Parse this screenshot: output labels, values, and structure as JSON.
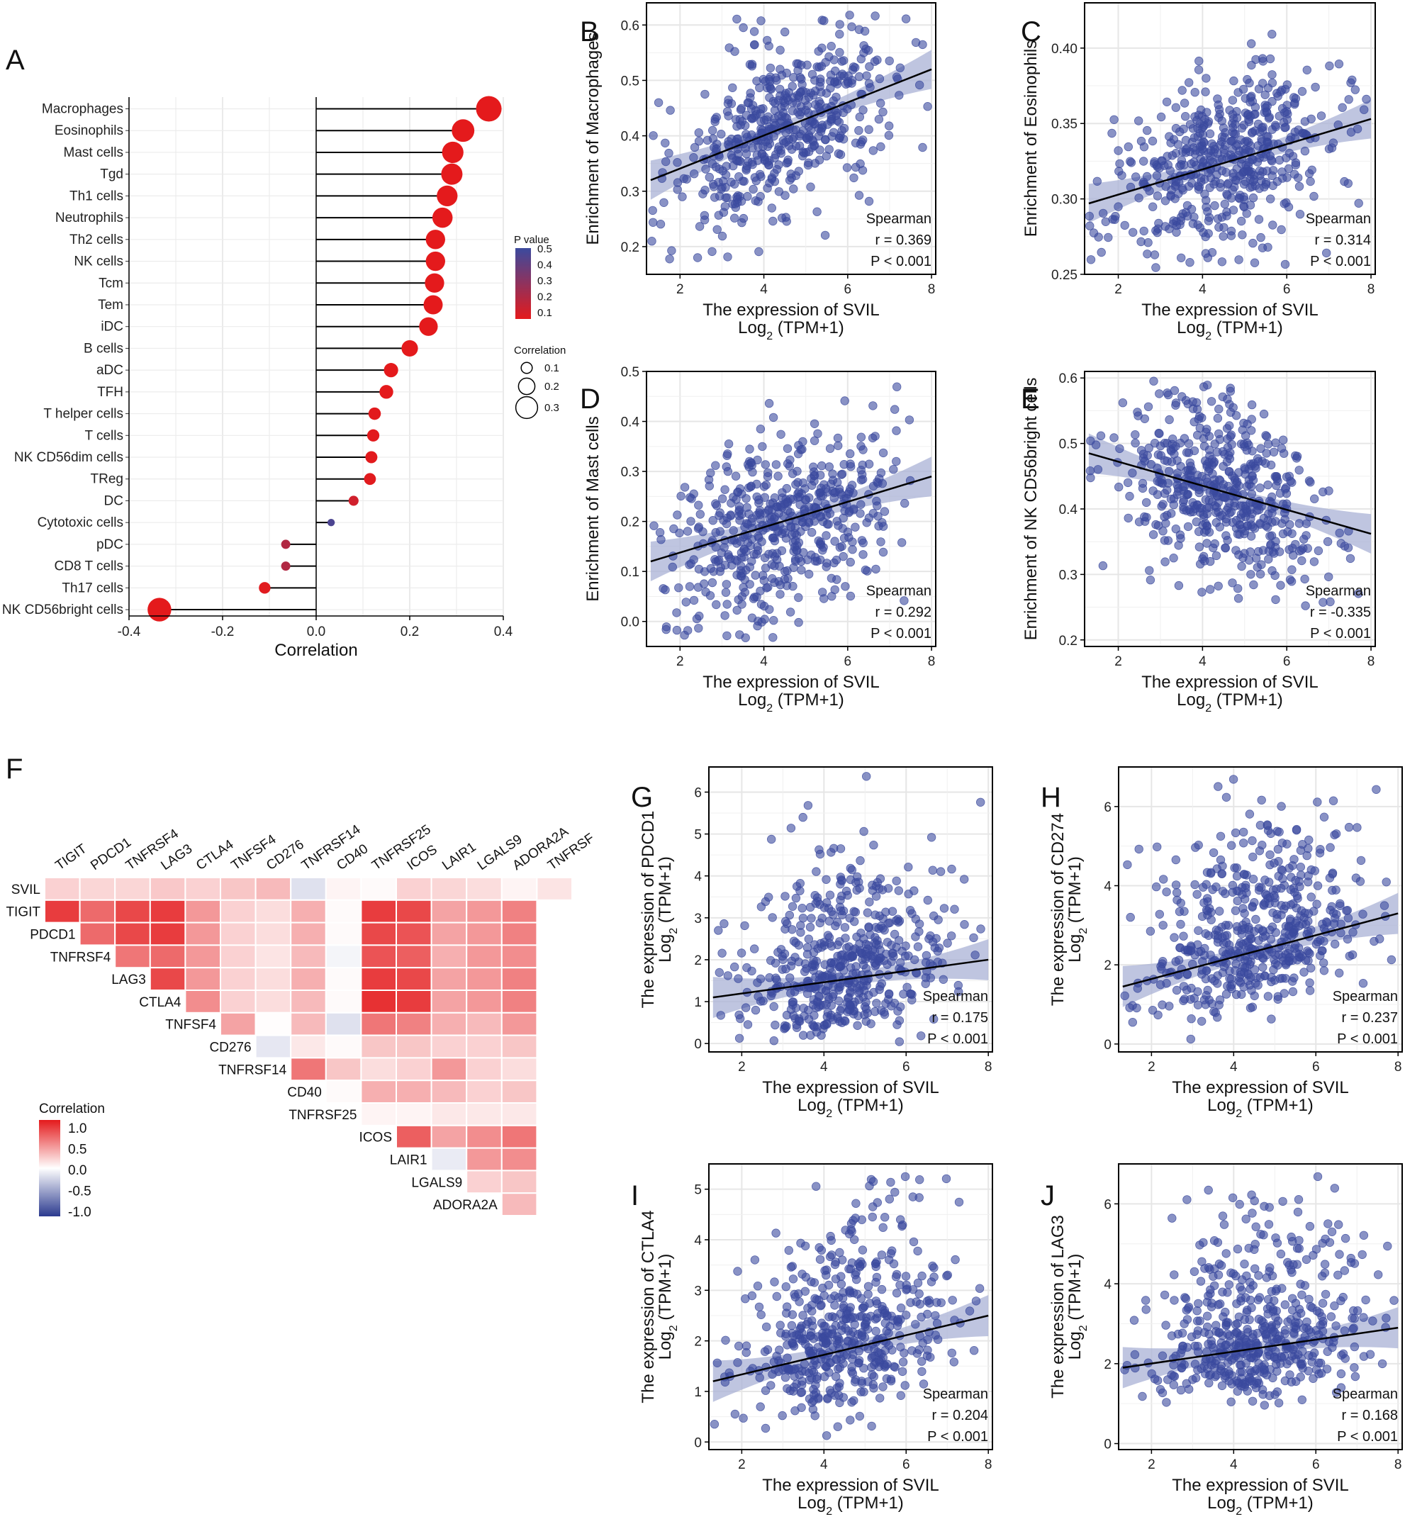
{
  "colors": {
    "point": "#3b4a9e",
    "band": "#a9b1d6",
    "line": "#000000",
    "grid": "#e6e6e6",
    "pos": "#e41a1c",
    "neg": "#2b3a8f",
    "pval_high": "#3b4a9e",
    "pval_low": "#e41a1c"
  },
  "chart_data": [
    {
      "id": "A",
      "panel_label": "A",
      "type": "lollipop",
      "xlabel": "Correlation",
      "xlim": [
        -0.4,
        0.4
      ],
      "xticks": [
        "-0.4",
        "-0.2",
        "0.0",
        "0.2",
        "0.4"
      ],
      "categories": [
        "Macrophages",
        "Eosinophils",
        "Mast cells",
        "Tgd",
        "Th1 cells",
        "Neutrophils",
        "Th2 cells",
        "NK cells",
        "Tcm",
        "Tem",
        "iDC",
        "B cells",
        "aDC",
        "TFH",
        "T helper cells",
        "T cells",
        "NK CD56dim cells",
        "TReg",
        "DC",
        "Cytotoxic cells",
        "pDC",
        "CD8 T cells",
        "Th17 cells",
        "NK CD56bright cells"
      ],
      "values": [
        0.369,
        0.314,
        0.292,
        0.29,
        0.28,
        0.27,
        0.255,
        0.255,
        0.253,
        0.25,
        0.24,
        0.2,
        0.16,
        0.15,
        0.125,
        0.122,
        0.118,
        0.115,
        0.08,
        0.032,
        -0.065,
        -0.065,
        -0.11,
        -0.335
      ],
      "pvalues": [
        0.001,
        0.001,
        0.001,
        0.001,
        0.001,
        0.001,
        0.001,
        0.001,
        0.001,
        0.001,
        0.001,
        0.001,
        0.001,
        0.001,
        0.005,
        0.005,
        0.005,
        0.008,
        0.06,
        0.45,
        0.15,
        0.15,
        0.01,
        0.001
      ],
      "pvalue_legend": {
        "title": "P value",
        "ticks": [
          "0.5",
          "0.4",
          "0.3",
          "0.2",
          "0.1"
        ]
      },
      "size_legend": {
        "title": "Correlation",
        "ticks": [
          "0.1",
          "0.2",
          "0.3"
        ]
      }
    },
    {
      "id": "B",
      "panel_label": "B",
      "type": "scatter",
      "ylabel": "Enrichment of Macrophages",
      "xlabel_line1": "The expression of SVIL",
      "xlabel_line2_pre": "Log",
      "xlabel_line2_sub": "2",
      "xlabel_line2_post": " (TPM+1)",
      "xlim": [
        1.2,
        8.1
      ],
      "ylim": [
        0.15,
        0.64
      ],
      "xticks": [
        "2",
        "4",
        "6",
        "8"
      ],
      "yticks": [
        "0.2",
        "0.3",
        "0.4",
        "0.5",
        "0.6"
      ],
      "fit": {
        "x0": 1.3,
        "y0": 0.32,
        "x1": 8.0,
        "y1": 0.52
      },
      "stats": {
        "method": "Spearman",
        "r": "r = 0.369",
        "p": "P < 0.001"
      }
    },
    {
      "id": "C",
      "panel_label": "C",
      "type": "scatter",
      "ylabel": "Enrichment of Eosinophils",
      "xlabel_line1": "The expression of SVIL",
      "xlabel_line2_pre": "Log",
      "xlabel_line2_sub": "2",
      "xlabel_line2_post": " (TPM+1)",
      "xlim": [
        1.2,
        8.1
      ],
      "ylim": [
        0.25,
        0.43
      ],
      "xticks": [
        "2",
        "4",
        "6",
        "8"
      ],
      "yticks": [
        "0.25",
        "0.30",
        "0.35",
        "0.40"
      ],
      "fit": {
        "x0": 1.3,
        "y0": 0.297,
        "x1": 8.0,
        "y1": 0.353
      },
      "stats": {
        "method": "Spearman",
        "r": "r = 0.314",
        "p": "P < 0.001"
      }
    },
    {
      "id": "D",
      "panel_label": "D",
      "type": "scatter",
      "ylabel": "Enrichment of Mast cells",
      "xlabel_line1": "The expression of SVIL",
      "xlabel_line2_pre": "Log",
      "xlabel_line2_sub": "2",
      "xlabel_line2_post": " (TPM+1)",
      "xlim": [
        1.2,
        8.1
      ],
      "ylim": [
        -0.05,
        0.5
      ],
      "xticks": [
        "2",
        "4",
        "6",
        "8"
      ],
      "yticks": [
        "0.0",
        "0.1",
        "0.2",
        "0.3",
        "0.4",
        "0.5"
      ],
      "fit": {
        "x0": 1.3,
        "y0": 0.12,
        "x1": 8.0,
        "y1": 0.29
      },
      "stats": {
        "method": "Spearman",
        "r": "r = 0.292",
        "p": "P < 0.001"
      }
    },
    {
      "id": "E",
      "panel_label": "E",
      "type": "scatter",
      "ylabel": "Enrichment of NK CD56bright cells",
      "xlabel_line1": "The expression of SVIL",
      "xlabel_line2_pre": "Log",
      "xlabel_line2_sub": "2",
      "xlabel_line2_post": " (TPM+1)",
      "xlim": [
        1.2,
        8.1
      ],
      "ylim": [
        0.19,
        0.61
      ],
      "xticks": [
        "2",
        "4",
        "6",
        "8"
      ],
      "yticks": [
        "0.2",
        "0.3",
        "0.4",
        "0.5",
        "0.6"
      ],
      "fit": {
        "x0": 1.3,
        "y0": 0.485,
        "x1": 8.0,
        "y1": 0.362
      },
      "stats": {
        "method": "Spearman",
        "r": "r = -0.335",
        "p": "P < 0.001"
      }
    },
    {
      "id": "F",
      "panel_label": "F",
      "type": "heatmap",
      "genes": [
        "SVIL",
        "TIGIT",
        "PDCD1",
        "TNFRSF4",
        "LAG3",
        "CTLA4",
        "TNFSF4",
        "CD276",
        "TNFRSF14",
        "CD40",
        "TNFRSF25",
        "ICOS",
        "LAIR1",
        "LGALS9",
        "ADORA2A",
        "TNFRSF"
      ],
      "col_labels": [
        "TIGIT",
        "PDCD1",
        "TNFRSF4",
        "LAG3",
        "CTLA4",
        "TNFSF4",
        "CD276",
        "TNFRSF14",
        "CD40",
        "TNFRSF25",
        "ICOS",
        "LAIR1",
        "LGALS9",
        "ADORA2A",
        "TNFRSF"
      ],
      "row_labels": [
        "SVIL",
        "TIGIT",
        "PDCD1",
        "TNFRSF4",
        "LAG3",
        "CTLA4",
        "TNFSF4",
        "CD276",
        "TNFRSF14",
        "CD40",
        "TNFRSF25",
        "ICOS",
        "LAIR1",
        "LGALS9",
        "ADORA2A"
      ],
      "values": [
        [
          0.2,
          0.18,
          0.18,
          0.24,
          0.2,
          0.25,
          0.3,
          -0.15,
          0.05,
          0.02,
          0.2,
          0.18,
          0.15,
          0.05,
          0.12
        ],
        [
          0.85,
          0.65,
          0.8,
          0.85,
          0.45,
          0.2,
          0.15,
          0.35,
          0.02,
          0.85,
          0.8,
          0.4,
          0.45,
          0.55
        ],
        [
          0.65,
          0.8,
          0.85,
          0.45,
          0.2,
          0.15,
          0.35,
          0.02,
          0.8,
          0.75,
          0.4,
          0.45,
          0.55
        ],
        [
          0.6,
          0.65,
          0.45,
          0.2,
          0.12,
          0.3,
          -0.05,
          0.75,
          0.7,
          0.35,
          0.45,
          0.5
        ],
        [
          0.8,
          0.45,
          0.2,
          0.15,
          0.35,
          0.02,
          0.85,
          0.8,
          0.4,
          0.45,
          0.55
        ],
        [
          0.5,
          0.2,
          0.15,
          0.3,
          0.02,
          0.9,
          0.85,
          0.4,
          0.45,
          0.55
        ],
        [
          0.4,
          0.01,
          0.3,
          -0.15,
          0.6,
          0.55,
          0.35,
          0.3,
          0.45
        ],
        [
          -0.12,
          0.1,
          0.02,
          0.25,
          0.25,
          0.2,
          0.2,
          0.25
        ],
        [
          0.6,
          0.25,
          0.15,
          0.2,
          0.45,
          0.2,
          0.15
        ],
        [
          0.02,
          0.35,
          0.35,
          0.3,
          0.2,
          0.25
        ],
        [
          0.05,
          0.05,
          0.1,
          0.1,
          0.1
        ],
        [
          0.7,
          0.4,
          0.5,
          0.6
        ],
        [
          -0.1,
          0.45,
          0.5
        ],
        [
          0.2,
          0.25
        ],
        [
          0.3
        ]
      ],
      "legend": {
        "title": "Correlation",
        "ticks": [
          "1.0",
          "0.5",
          "0.0",
          "-0.5",
          "-1.0"
        ]
      }
    },
    {
      "id": "G",
      "panel_label": "G",
      "type": "scatter",
      "ylabel_line1": "The expression of PDCD1",
      "ylabel_line2_pre": "Log",
      "ylabel_line2_sub": "2",
      "ylabel_line2_post": " (TPM+1)",
      "xlabel_line1": "The expression of SVIL",
      "xlabel_line2_pre": "Log",
      "xlabel_line2_sub": "2",
      "xlabel_line2_post": " (TPM+1)",
      "xlim": [
        1.2,
        8.1
      ],
      "ylim": [
        -0.2,
        6.6
      ],
      "xticks": [
        "2",
        "4",
        "6",
        "8"
      ],
      "yticks": [
        "0",
        "1",
        "2",
        "3",
        "4",
        "5",
        "6"
      ],
      "fit": {
        "x0": 1.3,
        "y0": 1.1,
        "x1": 8.0,
        "y1": 2.0
      },
      "stats": {
        "method": "Spearman",
        "r": "r = 0.175",
        "p": "P < 0.001"
      }
    },
    {
      "id": "H",
      "panel_label": "H",
      "type": "scatter",
      "ylabel_line1": "The expression of CD274",
      "ylabel_line2_pre": "Log",
      "ylabel_line2_sub": "2",
      "ylabel_line2_post": " (TPM+1)",
      "xlabel_line1": "The expression of SVIL",
      "xlabel_line2_pre": "Log",
      "xlabel_line2_sub": "2",
      "xlabel_line2_post": " (TPM+1)",
      "xlim": [
        1.2,
        8.1
      ],
      "ylim": [
        -0.2,
        7.0
      ],
      "xticks": [
        "2",
        "4",
        "6",
        "8"
      ],
      "yticks": [
        "0",
        "2",
        "4",
        "6"
      ],
      "fit": {
        "x0": 1.3,
        "y0": 1.45,
        "x1": 8.0,
        "y1": 3.3
      },
      "stats": {
        "method": "Spearman",
        "r": "r = 0.237",
        "p": "P < 0.001"
      }
    },
    {
      "id": "I",
      "panel_label": "I",
      "type": "scatter",
      "ylabel_line1": "The expression of CTLA4",
      "ylabel_line2_pre": "Log",
      "ylabel_line2_sub": "2",
      "ylabel_line2_post": " (TPM+1)",
      "xlabel_line1": "The expression of SVIL",
      "xlabel_line2_pre": "Log",
      "xlabel_line2_sub": "2",
      "xlabel_line2_post": " (TPM+1)",
      "xlim": [
        1.2,
        8.1
      ],
      "ylim": [
        -0.15,
        5.5
      ],
      "xticks": [
        "2",
        "4",
        "6",
        "8"
      ],
      "yticks": [
        "0",
        "1",
        "2",
        "3",
        "4",
        "5"
      ],
      "fit": {
        "x0": 1.3,
        "y0": 1.2,
        "x1": 8.0,
        "y1": 2.5
      },
      "stats": {
        "method": "Spearman",
        "r": "r = 0.204",
        "p": "P < 0.001"
      }
    },
    {
      "id": "J",
      "panel_label": "J",
      "type": "scatter",
      "ylabel_line1": "The expression of LAG3",
      "ylabel_line2_pre": "Log",
      "ylabel_line2_sub": "2",
      "ylabel_line2_post": " (TPM+1)",
      "xlabel_line1": "The expression of SVIL",
      "xlabel_line2_pre": "Log",
      "xlabel_line2_sub": "2",
      "xlabel_line2_post": " (TPM+1)",
      "xlim": [
        1.2,
        8.1
      ],
      "ylim": [
        -0.15,
        7.0
      ],
      "xticks": [
        "2",
        "4",
        "6",
        "8"
      ],
      "yticks": [
        "0",
        "2",
        "4",
        "6"
      ],
      "fit": {
        "x0": 1.3,
        "y0": 1.9,
        "x1": 8.0,
        "y1": 2.9
      },
      "stats": {
        "method": "Spearman",
        "r": "r = 0.168",
        "p": "P < 0.001"
      }
    }
  ]
}
